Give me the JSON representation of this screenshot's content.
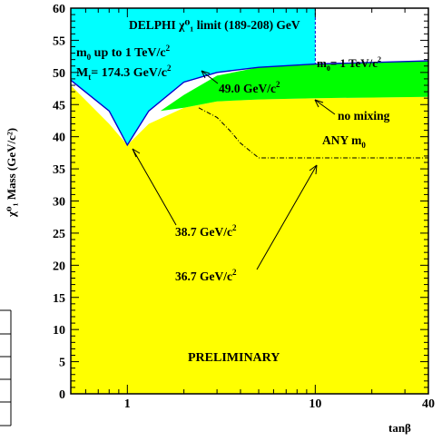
{
  "chart_data": {
    "type": "area",
    "title": "DELPHI χ⁰₁ limit (189-208) GeV",
    "xlabel": "tanβ",
    "ylabel": "χ⁰₁ Mass (GeV/c²)",
    "xscale": "log",
    "xlim": [
      0.5,
      40
    ],
    "ylim": [
      0,
      60
    ],
    "x_ticks": [
      "1",
      "10",
      "40"
    ],
    "y_ticks": [
      "0",
      "5",
      "10",
      "15",
      "20",
      "25",
      "30",
      "35",
      "40",
      "45",
      "50",
      "55",
      "60"
    ],
    "colors": {
      "excluded_any_m0": "#ffff00",
      "excluded_no_mixing": "#00ff00",
      "excluded_m0_1tev": "#00ffff"
    },
    "regions": [
      {
        "name": "ANY m0 (yellow)",
        "x": [
          0.5,
          0.8,
          1.0,
          1.3,
          2.0,
          3.0,
          5.0,
          10.0,
          40.0
        ],
        "y": [
          48.0,
          42.0,
          38.7,
          42.0,
          44.5,
          45.5,
          45.8,
          46.0,
          46.2
        ]
      },
      {
        "name": "no mixing (green)",
        "x": [
          1.5,
          2.0,
          3.0,
          5.0,
          10.0,
          40.0
        ],
        "y": [
          44.0,
          46.5,
          49.5,
          50.8,
          51.3,
          51.8
        ]
      },
      {
        "name": "m0 up to 1 TeV/c2 (cyan)",
        "x": [
          0.5,
          0.8,
          1.0,
          1.3,
          2.0,
          3.0,
          5.0,
          10.0
        ],
        "y": [
          48.8,
          44.0,
          38.7,
          44.0,
          48.5,
          50.0,
          50.8,
          51.3
        ]
      }
    ],
    "dashdot_curve": {
      "x": [
        2.4,
        3.0,
        3.5,
        4.0,
        5.0,
        10.0,
        40.0
      ],
      "y": [
        44.5,
        43.0,
        41.0,
        39.0,
        36.7,
        36.7,
        36.7
      ]
    },
    "annotations": {
      "m0_range": "m",
      "m0_range_sub": "0",
      "m0_range_rest": " up to 1 TeV/c",
      "m0_range_sup": "2",
      "mt": "M",
      "mt_sub": "t",
      "mt_rest": "= 174.3 GeV/c",
      "mt_sup": "2",
      "m0_1tev": "m",
      "m0_1tev_sub": "0",
      "m0_1tev_rest": "= 1 TeV/c",
      "m0_1tev_sup": "2",
      "label_49": "49.0 GeV/c",
      "label_49_sup": "2",
      "no_mixing": "no mixing",
      "any_m0": "ANY  m",
      "any_m0_sub": "0",
      "label_387": "38.7 GeV/c",
      "label_387_sup": "2",
      "label_367": "36.7 GeV/c",
      "label_367_sup": "2",
      "preliminary": "PRELIMINARY"
    }
  }
}
